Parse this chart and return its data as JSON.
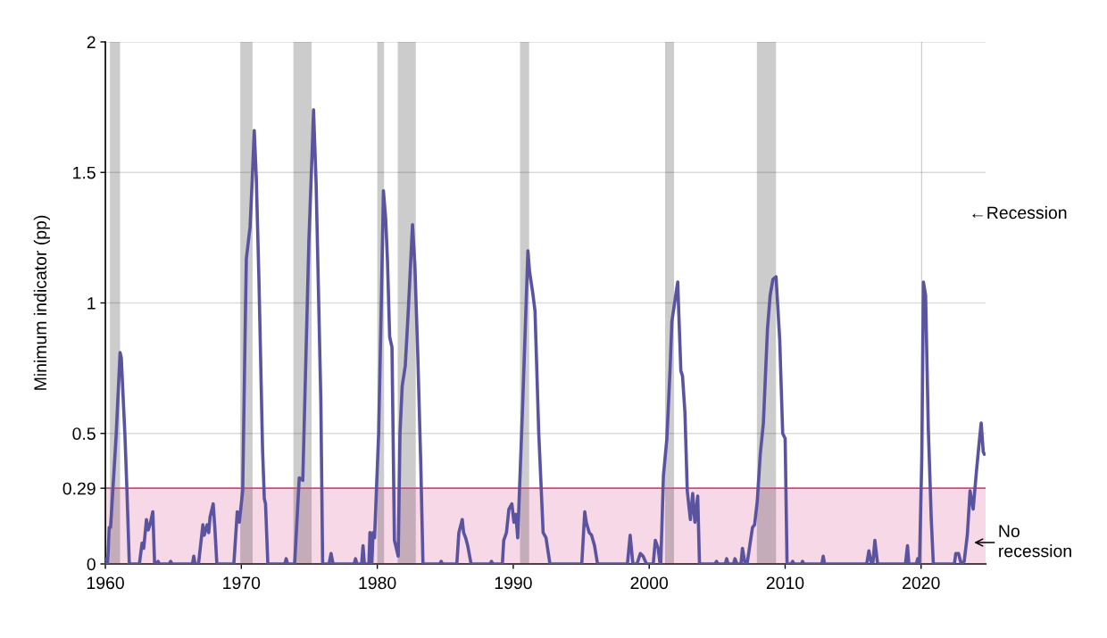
{
  "chart_data": {
    "type": "line",
    "ylabel": "Minimum indicator (pp)",
    "color": "#5a54a0",
    "x": [
      1960.0,
      1960.1,
      1960.17,
      1960.28,
      1960.38,
      1960.79,
      1961.08,
      1961.17,
      1961.44,
      1961.58,
      1961.76,
      1962.5,
      1962.7,
      1962.82,
      1963.02,
      1963.15,
      1963.28,
      1963.49,
      1963.62,
      1963.8,
      1963.88,
      1963.96,
      1964.7,
      1964.8,
      1964.9,
      1966.4,
      1966.5,
      1966.6,
      1966.85,
      1967.17,
      1967.27,
      1967.49,
      1967.6,
      1967.7,
      1967.93,
      1968.05,
      1968.2,
      1969.45,
      1969.7,
      1969.85,
      1970.1,
      1970.3,
      1970.37,
      1970.64,
      1970.8,
      1970.95,
      1971.1,
      1971.29,
      1971.56,
      1971.69,
      1971.78,
      1971.95,
      1973.2,
      1973.3,
      1973.4,
      1973.92,
      1974.26,
      1974.52,
      1974.7,
      1974.97,
      1975.23,
      1975.31,
      1975.5,
      1975.6,
      1975.85,
      1975.98,
      1976.45,
      1976.6,
      1976.75,
      1978.3,
      1978.4,
      1978.5,
      1978.85,
      1978.95,
      1979.05,
      1979.38,
      1979.46,
      1979.6,
      1979.69,
      1979.8,
      1980.1,
      1980.29,
      1980.45,
      1980.62,
      1980.75,
      1980.91,
      1981.08,
      1981.26,
      1981.54,
      1981.67,
      1981.83,
      1982.06,
      1982.29,
      1982.59,
      1982.76,
      1982.98,
      1983.2,
      1983.36,
      1984.6,
      1984.7,
      1984.8,
      1985.85,
      1986.0,
      1986.25,
      1986.35,
      1986.5,
      1986.65,
      1986.9,
      1988.3,
      1988.4,
      1988.5,
      1989.2,
      1989.3,
      1989.5,
      1989.68,
      1989.9,
      1990.05,
      1990.19,
      1990.33,
      1990.7,
      1991.08,
      1991.2,
      1991.43,
      1991.6,
      1991.87,
      1992.2,
      1992.41,
      1992.7,
      1995.04,
      1995.26,
      1995.37,
      1995.59,
      1995.76,
      1995.98,
      1996.2,
      1998.4,
      1998.6,
      1998.8,
      1999.1,
      1999.35,
      1999.55,
      1999.8,
      2000.3,
      2000.45,
      2000.66,
      2000.8,
      2000.85,
      2001.05,
      2001.3,
      2001.54,
      2001.67,
      2001.87,
      2002.1,
      2002.15,
      2002.33,
      2002.45,
      2002.63,
      2002.8,
      2003.03,
      2003.2,
      2003.36,
      2003.57,
      2003.7,
      2004.85,
      2004.95,
      2005.05,
      2005.6,
      2005.7,
      2005.8,
      2006.2,
      2006.31,
      2006.45,
      2006.75,
      2006.86,
      2007.05,
      2007.2,
      2007.6,
      2007.75,
      2007.95,
      2008.17,
      2008.4,
      2008.7,
      2008.9,
      2009.1,
      2009.33,
      2009.6,
      2009.82,
      2010.0,
      2010.14,
      2010.45,
      2010.55,
      2010.65,
      2011.2,
      2011.28,
      2011.38,
      2012.7,
      2012.8,
      2012.9,
      2016.0,
      2016.16,
      2016.35,
      2016.45,
      2016.6,
      2016.8,
      2018.85,
      2019.0,
      2019.1,
      2019.65,
      2019.75,
      2019.88,
      2020.05,
      2020.17,
      2020.33,
      2020.53,
      2020.75,
      2020.9,
      2022.45,
      2022.55,
      2022.75,
      2022.95,
      2023.17,
      2023.4,
      2023.6,
      2023.83,
      2024.08,
      2024.3,
      2024.42,
      2024.57,
      2024.65
    ],
    "values": [
      0,
      0.02,
      0,
      0.14,
      0.14,
      0.49,
      0.81,
      0.79,
      0.49,
      0.29,
      0,
      0,
      0.08,
      0.06,
      0.17,
      0.13,
      0.15,
      0.2,
      0,
      0,
      0.01,
      0,
      0,
      0.01,
      0,
      0,
      0.03,
      0,
      0,
      0.15,
      0.11,
      0.15,
      0.12,
      0.18,
      0.23,
      0.14,
      0,
      0,
      0.2,
      0.16,
      0.28,
      0.96,
      1.17,
      1.29,
      1.47,
      1.66,
      1.48,
      1.1,
      0.44,
      0.25,
      0.23,
      0,
      0,
      0.02,
      0,
      0,
      0.33,
      0.32,
      0.69,
      1.24,
      1.61,
      1.74,
      1.46,
      1.22,
      0.62,
      0,
      0,
      0.04,
      0,
      0,
      0.02,
      0,
      0,
      0.07,
      0,
      0,
      0.12,
      0,
      0.12,
      0.1,
      0.5,
      0.98,
      1.43,
      1.32,
      1.16,
      0.87,
      0.83,
      0.09,
      0.03,
      0.5,
      0.68,
      0.76,
      0.98,
      1.3,
      1.15,
      0.8,
      0.38,
      0,
      0,
      0.01,
      0,
      0,
      0.12,
      0.17,
      0.12,
      0.1,
      0.07,
      0,
      0,
      0.01,
      0,
      0,
      0.09,
      0.12,
      0.21,
      0.23,
      0.16,
      0.19,
      0.1,
      0.62,
      1.2,
      1.12,
      1.04,
      0.97,
      0.51,
      0.12,
      0.1,
      0,
      0,
      0.2,
      0.16,
      0.12,
      0.11,
      0.07,
      0,
      0,
      0.11,
      0,
      0,
      0.04,
      0.03,
      0,
      0,
      0.09,
      0.06,
      0,
      0,
      0.34,
      0.48,
      0.75,
      0.93,
      1.0,
      1.08,
      1.0,
      0.74,
      0.72,
      0.58,
      0.28,
      0.17,
      0.27,
      0.16,
      0.26,
      0,
      0,
      0.01,
      0,
      0,
      0.02,
      0,
      0,
      0.02,
      0,
      0,
      0.06,
      0,
      0,
      0.14,
      0.15,
      0.24,
      0.42,
      0.54,
      0.9,
      1.03,
      1.09,
      1.1,
      0.86,
      0.5,
      0.48,
      0,
      0,
      0.01,
      0,
      0,
      0.01,
      0,
      0,
      0.03,
      0,
      0,
      0.05,
      0,
      0,
      0.09,
      0,
      0,
      0.07,
      0,
      0,
      0.02,
      0,
      0.4,
      1.08,
      1.03,
      0.52,
      0.17,
      0,
      0,
      0.04,
      0.04,
      0,
      0.01,
      0.11,
      0.28,
      0.21,
      0.36,
      0.48,
      0.54,
      0.43,
      0.42
    ],
    "xlim": [
      1960,
      2024.75
    ],
    "xticks": [
      1960,
      1970,
      1980,
      1990,
      2000,
      2010,
      2020
    ],
    "ylim": [
      0,
      2
    ],
    "yticks": [
      0,
      0.29,
      0.5,
      1,
      1.5,
      2
    ],
    "grid": "y",
    "bands": [
      {
        "axis": "y",
        "from": 0,
        "to": 0.29,
        "color": "#f6d8e7"
      },
      {
        "axis": "x",
        "from": 1960.33,
        "to": 1961.08,
        "color": "#cccccc"
      },
      {
        "axis": "x",
        "from": 1969.92,
        "to": 1970.83,
        "color": "#cccccc"
      },
      {
        "axis": "x",
        "from": 1973.83,
        "to": 1975.17,
        "color": "#cccccc"
      },
      {
        "axis": "x",
        "from": 1980.0,
        "to": 1980.5,
        "color": "#cccccc"
      },
      {
        "axis": "x",
        "from": 1981.5,
        "to": 1982.83,
        "color": "#cccccc"
      },
      {
        "axis": "x",
        "from": 1990.5,
        "to": 1991.17,
        "color": "#cccccc"
      },
      {
        "axis": "x",
        "from": 2001.17,
        "to": 2001.83,
        "color": "#cccccc"
      },
      {
        "axis": "x",
        "from": 2007.92,
        "to": 2009.33,
        "color": "#cccccc"
      },
      {
        "axis": "x",
        "from": 2020.0,
        "to": 2020.08,
        "color": "#cccccc"
      }
    ],
    "ref_lines": [
      {
        "axis": "y",
        "value": 0.29,
        "color": "#d6488a"
      }
    ],
    "annotations": [
      "←Recession",
      "No\nrecession"
    ]
  }
}
